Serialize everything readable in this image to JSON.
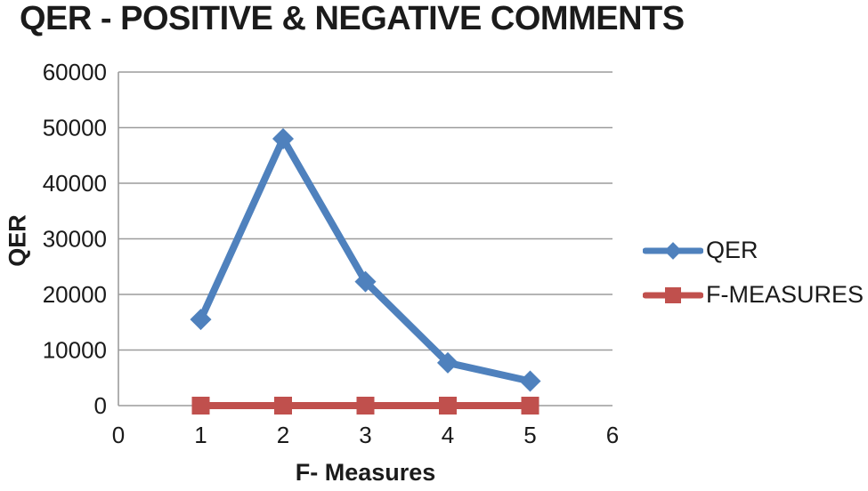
{
  "title": "QER - POSITIVE & NEGATIVE COMMENTS",
  "chart_data": {
    "type": "line",
    "title": "QER - POSITIVE & NEGATIVE COMMENTS",
    "xlabel": "F- Measures",
    "ylabel": "QER",
    "xlim": [
      0,
      6
    ],
    "ylim": [
      0,
      60000
    ],
    "x_ticks": [
      0,
      1,
      2,
      3,
      4,
      5,
      6
    ],
    "y_ticks": [
      0,
      10000,
      20000,
      30000,
      40000,
      50000,
      60000
    ],
    "grid": "horizontal",
    "legend_position": "right",
    "x": [
      1,
      2,
      3,
      4,
      5
    ],
    "series": [
      {
        "name": "QER",
        "color": "#4F81BD",
        "marker": "diamond",
        "values": [
          15500,
          48000,
          22300,
          7700,
          4400
        ]
      },
      {
        "name": "F-MEASURES",
        "color": "#C0504D",
        "marker": "square",
        "values": [
          0,
          0,
          0,
          0,
          0
        ]
      }
    ],
    "colors": {
      "gridline": "#9C9C9C",
      "axis": "#9C9C9C",
      "text": "#1a1a1a"
    }
  }
}
